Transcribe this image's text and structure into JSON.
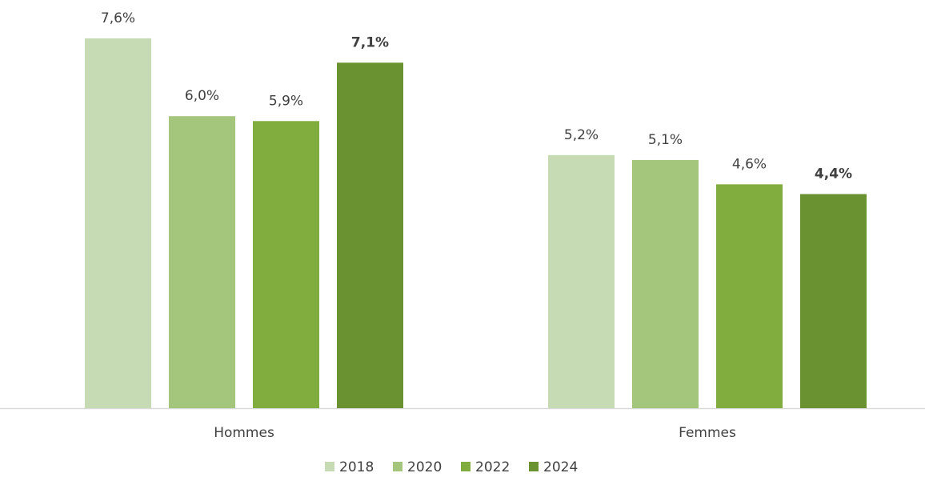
{
  "chart_data": {
    "type": "bar",
    "categories": [
      "Hommes",
      "Femmes"
    ],
    "series": [
      {
        "name": "2018",
        "color": "#c6dbb4",
        "values": [
          7.6,
          5.2
        ],
        "value_labels": [
          "7,6%",
          "5,2%"
        ]
      },
      {
        "name": "2020",
        "color": "#a3c57c",
        "values": [
          6.0,
          5.1
        ],
        "value_labels": [
          "6,0%",
          "5,1%"
        ]
      },
      {
        "name": "2022",
        "color": "#80ad3d",
        "values": [
          5.9,
          4.6
        ],
        "value_labels": [
          "5,9%",
          "4,6%"
        ]
      },
      {
        "name": "2024",
        "color": "#6a9230",
        "values": [
          7.1,
          4.4
        ],
        "value_labels": [
          "7,1%",
          "4,4%"
        ],
        "label_bold": true
      }
    ],
    "legend": "bottom"
  }
}
